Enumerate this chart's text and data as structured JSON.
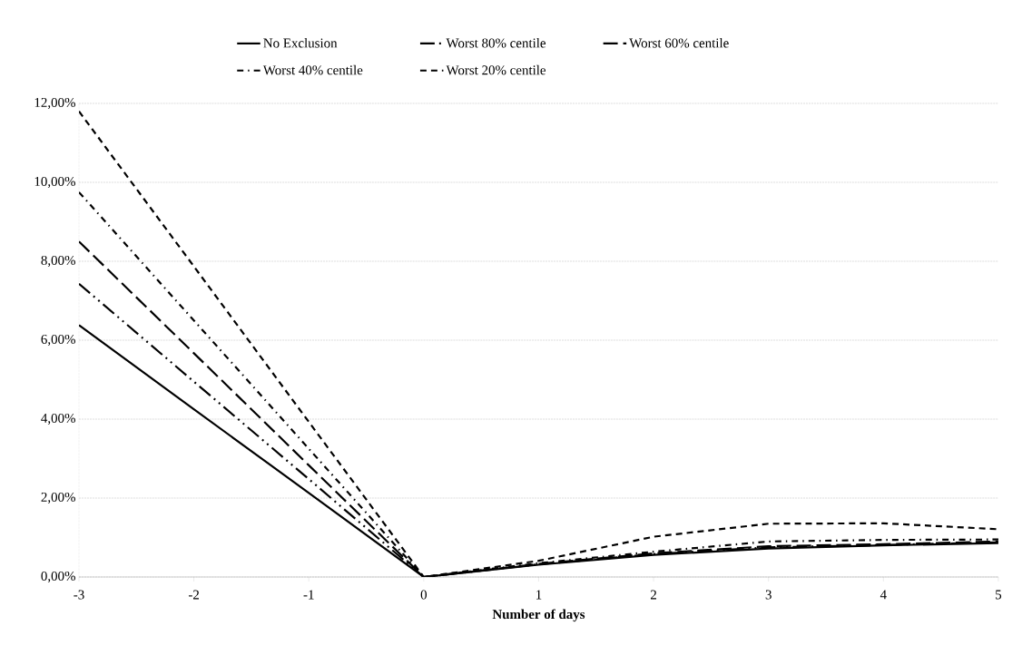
{
  "chart_data": {
    "type": "line",
    "xlabel": "Number of days",
    "x": [
      -3,
      -2,
      -1,
      0,
      1,
      2,
      3,
      4,
      5
    ],
    "series": [
      {
        "name": "No Exclusion",
        "color": "#000000",
        "line_style": "solid",
        "values": [
          6.38,
          4.25,
          2.13,
          0,
          0.31,
          0.56,
          0.72,
          0.8,
          0.86
        ]
      },
      {
        "name": "Worst 80% centile",
        "color": "#000000",
        "line_style": "dashdotdot",
        "values": [
          7.43,
          4.95,
          2.48,
          0,
          0.32,
          0.58,
          0.75,
          0.81,
          0.88
        ]
      },
      {
        "name": "Worst 60% centile",
        "color": "#000000",
        "line_style": "longdash",
        "values": [
          8.5,
          5.67,
          2.83,
          0,
          0.33,
          0.6,
          0.78,
          0.83,
          0.9
        ]
      },
      {
        "name": "Worst 40% centile",
        "color": "#000000",
        "line_style": "dashdot",
        "values": [
          9.75,
          6.5,
          3.25,
          0,
          0.35,
          0.64,
          0.9,
          0.94,
          0.95
        ]
      },
      {
        "name": "Worst 20% centile",
        "color": "#000000",
        "line_style": "dashed",
        "values": [
          11.8,
          7.87,
          3.93,
          0,
          0.41,
          1.02,
          1.35,
          1.36,
          1.21
        ]
      }
    ],
    "xlim": [
      -3,
      5
    ],
    "xticks": [
      -3,
      -2,
      -1,
      0,
      1,
      2,
      3,
      4,
      5
    ],
    "ylim": [
      0,
      12
    ],
    "yticks": [
      {
        "value": 0,
        "label": "0,00%"
      },
      {
        "value": 2,
        "label": "2,00%"
      },
      {
        "value": 4,
        "label": "4,00%"
      },
      {
        "value": 6,
        "label": "6,00%"
      },
      {
        "value": 8,
        "label": "8,00%"
      },
      {
        "value": 10,
        "label": "10,00%"
      },
      {
        "value": 12,
        "label": "12,00%"
      }
    ],
    "grid": "y",
    "legend": "top",
    "marker": "none"
  }
}
